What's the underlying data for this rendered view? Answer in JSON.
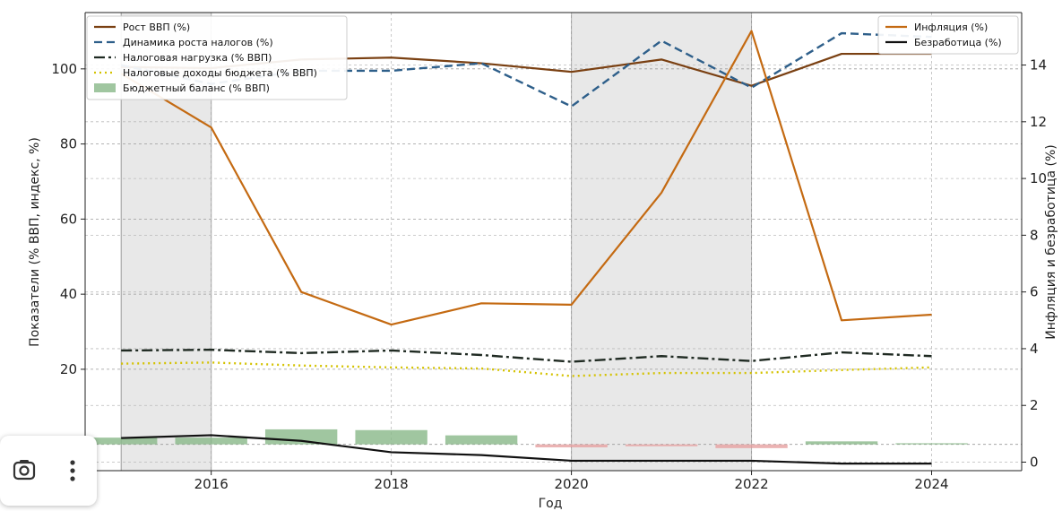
{
  "chart_data": {
    "type": "line",
    "x": [
      2015,
      2016,
      2017,
      2018,
      2019,
      2020,
      2021,
      2022,
      2023,
      2024
    ],
    "xlabel": "Год",
    "ylabel_left": "Показатели (% ВВП, индекс, %)",
    "ylabel_right": "Инфляция и безработица (%)",
    "xlim": [
      2014.6,
      2025.0
    ],
    "ylim_left": [
      -7,
      115
    ],
    "ylim_right": [
      -0.3,
      15.85
    ],
    "x_ticks": [
      2016,
      2018,
      2020,
      2022,
      2024
    ],
    "y_left_ticks": [
      0,
      20,
      40,
      60,
      80,
      100
    ],
    "y_right_ticks": [
      0,
      2,
      4,
      6,
      8,
      10,
      12,
      14
    ],
    "shaded_ranges": [
      [
        2015,
        2016
      ],
      [
        2020,
        2022
      ]
    ],
    "grid": true,
    "legend_left_placement": "upper-left",
    "legend_right_placement": "upper-right",
    "series_left": [
      {
        "name": "Рост ВВП (%)",
        "color": "#7a4012",
        "style": "solid",
        "values": [
          100.5,
          100.2,
          102.5,
          103.0,
          101.5,
          99.2,
          102.5,
          95.5,
          104.0,
          104.0
        ]
      },
      {
        "name": "Динамика роста налогов (%)",
        "color": "#2e5f8a",
        "style": "dashed",
        "values": [
          101.0,
          96.0,
          99.5,
          99.5,
          101.5,
          90.0,
          107.5,
          95.0,
          109.5,
          108.5
        ]
      },
      {
        "name": "Налоговая нагрузка (% ВВП)",
        "color": "#1f2a22",
        "style": "dashdot",
        "values": [
          25.0,
          25.2,
          24.3,
          25.0,
          23.8,
          22.0,
          23.5,
          22.2,
          24.5,
          23.5
        ]
      },
      {
        "name": "Налоговые доходы бюджета (% ВВП)",
        "color": "#d4c200",
        "style": "dotted",
        "values": [
          21.5,
          21.8,
          21.0,
          20.5,
          20.2,
          18.2,
          19.0,
          19.0,
          19.8,
          20.5
        ]
      }
    ],
    "bars_left": {
      "name": "Бюджетный баланс (% ВВП)",
      "color": "#88b888",
      "negative_color": "#e6a0a0",
      "values": [
        1.8,
        1.8,
        4.0,
        3.8,
        2.4,
        -0.8,
        -0.5,
        -1.0,
        0.8,
        0.3
      ]
    },
    "series_right": [
      {
        "name": "Инфляция (%)",
        "color": "#c46a12",
        "style": "solid",
        "values": [
          13.7,
          11.8,
          6.0,
          4.85,
          5.6,
          5.55,
          9.5,
          15.2,
          5.0,
          5.2
        ]
      },
      {
        "name": "Безработица (%)",
        "color": "#111111",
        "style": "solid",
        "values": [
          0.85,
          0.95,
          0.75,
          0.35,
          0.25,
          0.05,
          0.05,
          0.05,
          -0.05,
          -0.05
        ]
      }
    ]
  }
}
